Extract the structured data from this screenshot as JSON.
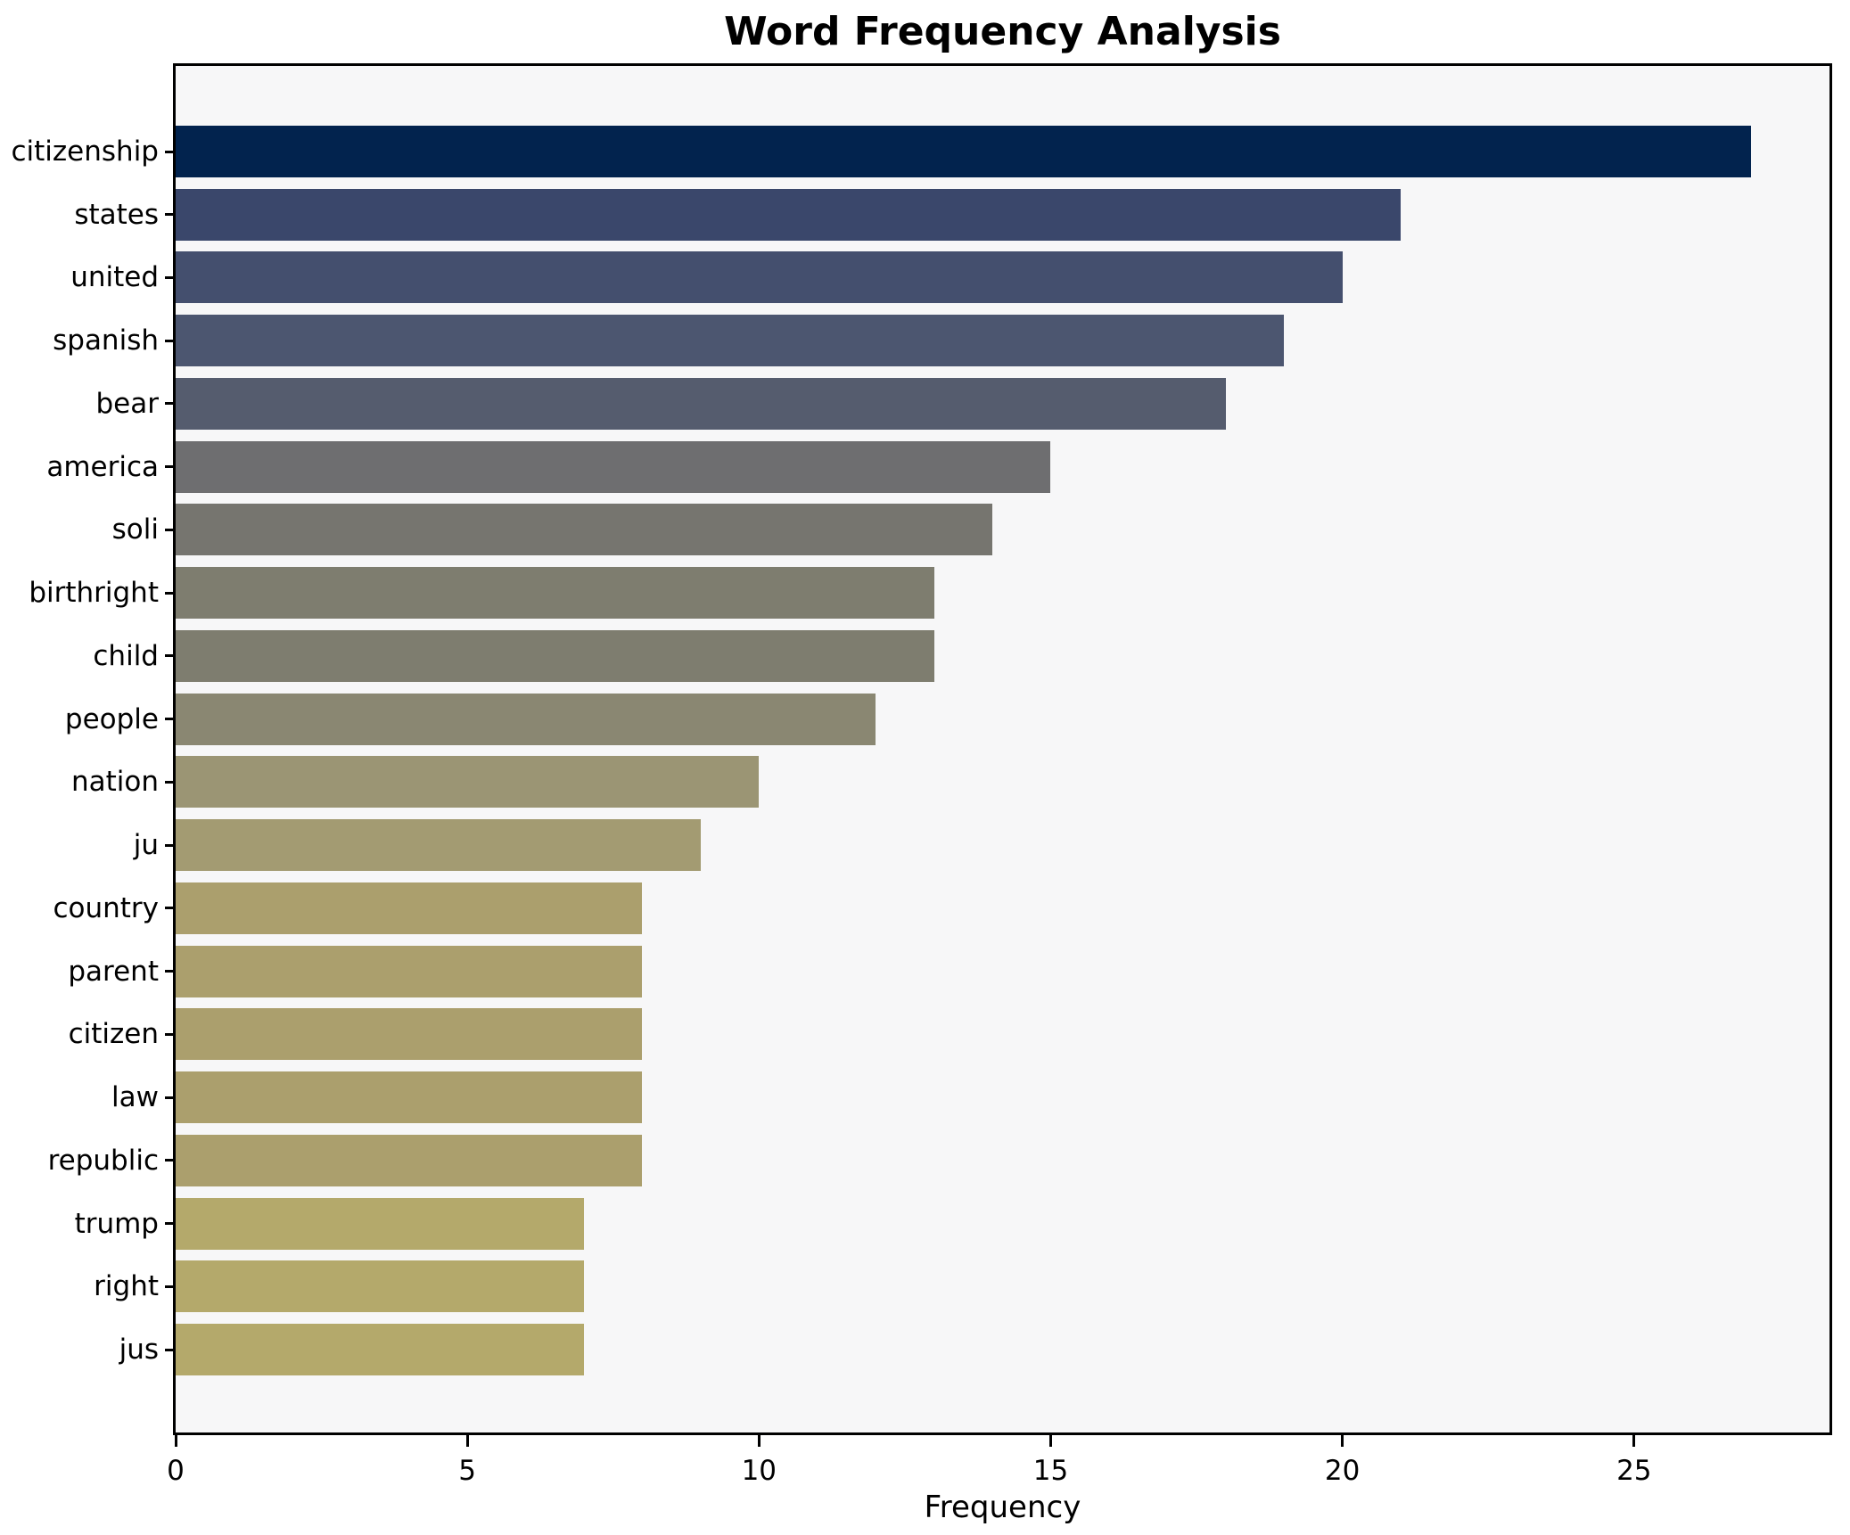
{
  "chart_data": {
    "type": "bar",
    "orientation": "horizontal",
    "title": "Word Frequency Analysis",
    "xlabel": "Frequency",
    "ylabel": "",
    "categories": [
      "citizenship",
      "states",
      "united",
      "spanish",
      "bear",
      "america",
      "soli",
      "birthright",
      "child",
      "people",
      "nation",
      "ju",
      "country",
      "parent",
      "citizen",
      "law",
      "republic",
      "trump",
      "right",
      "jus"
    ],
    "values": [
      27,
      21,
      20,
      19,
      18,
      15,
      14,
      13,
      13,
      12,
      10,
      9,
      8,
      8,
      8,
      8,
      8,
      7,
      7,
      7
    ],
    "bar_colors": [
      "#02234e",
      "#3a476b",
      "#444f6e",
      "#4c5670",
      "#555c6e",
      "#6e6e70",
      "#76756f",
      "#7e7d6f",
      "#7e7d6f",
      "#8a8772",
      "#9b9574",
      "#a39b72",
      "#ab9f6d",
      "#ab9f6d",
      "#ab9f6d",
      "#ab9f6d",
      "#ab9f6d",
      "#b4a96b",
      "#b4a96b",
      "#b4a96b"
    ],
    "xticks": [
      0,
      5,
      10,
      15,
      20,
      25
    ],
    "xlim": [
      0,
      28.35
    ],
    "grid": false,
    "legend": null,
    "plot_background": "#f7f7f8",
    "figure_background": "#ffffff",
    "spine_color": "#000000"
  }
}
